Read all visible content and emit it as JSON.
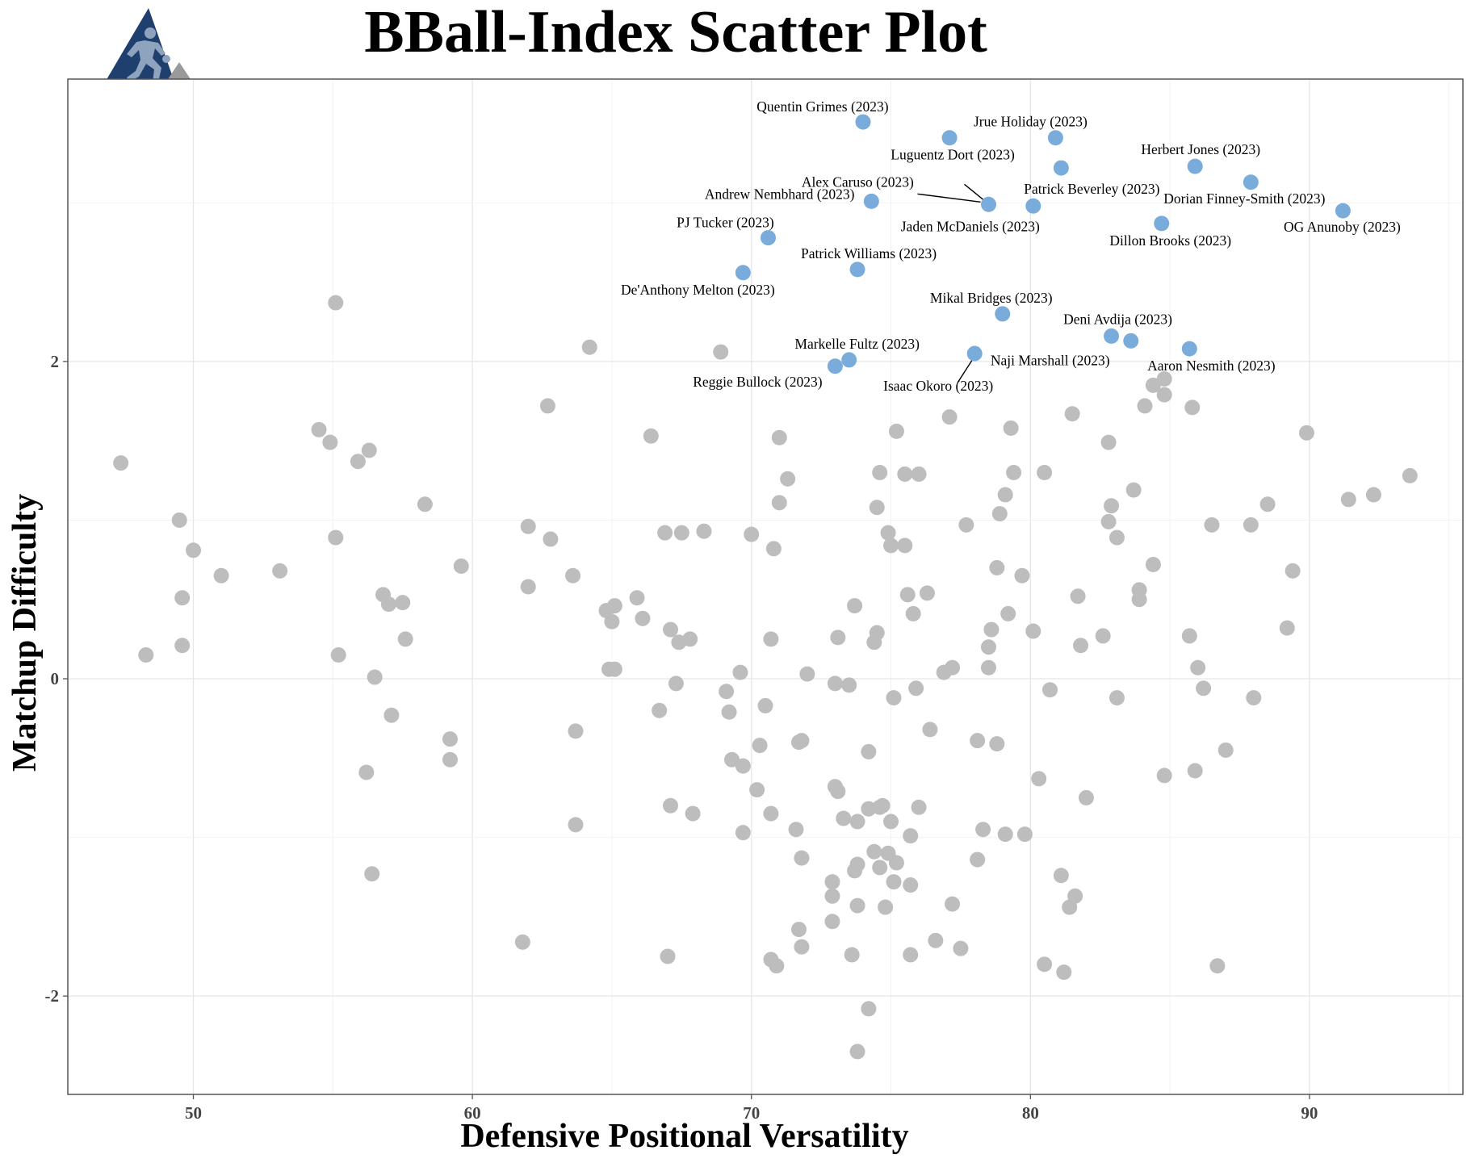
{
  "chart_data": {
    "type": "scatter",
    "title": "BBall-Index Scatter Plot",
    "xlabel": "Defensive Positional Versatility",
    "ylabel": "Matchup Difficulty",
    "xlim": [
      45.5,
      95.5
    ],
    "ylim": [
      -2.62,
      3.78
    ],
    "x_ticks": [
      50,
      60,
      70,
      80,
      90
    ],
    "y_ticks": [
      -2,
      0,
      2
    ],
    "grid": true,
    "legend": "none",
    "colors": {
      "highlight": "#7aacdb",
      "background": "#bdbdbd",
      "panel_border": "#555555"
    },
    "logo_icon": "basketball-player-logo-icon",
    "highlighted": [
      {
        "label": "Quentin Grimes (2023)",
        "x": 74.0,
        "y": 3.51
      },
      {
        "label": "Jrue Holiday (2023)",
        "x": 80.9,
        "y": 3.41
      },
      {
        "label": "Luguentz Dort (2023)",
        "x": 77.1,
        "y": 3.41
      },
      {
        "label": "Herbert Jones (2023)",
        "x": 85.9,
        "y": 3.23
      },
      {
        "label": "Patrick Beverley (2023)",
        "x": 81.1,
        "y": 3.22
      },
      {
        "label": "Dorian Finney-Smith (2023)",
        "x": 87.9,
        "y": 3.13
      },
      {
        "label": "Alex Caruso (2023)",
        "x": 74.3,
        "y": 3.01
      },
      {
        "label": "Andrew Nembhard (2023)",
        "x": 78.5,
        "y": 2.99
      },
      {
        "label": "Jaden McDaniels (2023)",
        "x": 80.1,
        "y": 2.98
      },
      {
        "label": "OG Anunoby (2023)",
        "x": 91.2,
        "y": 2.95
      },
      {
        "label": "Dillon Brooks (2023)",
        "x": 84.7,
        "y": 2.87
      },
      {
        "label": "PJ Tucker (2023)",
        "x": 70.6,
        "y": 2.78
      },
      {
        "label": "Patrick Williams (2023)",
        "x": 73.8,
        "y": 2.58
      },
      {
        "label": "De'Anthony Melton (2023)",
        "x": 69.7,
        "y": 2.56
      },
      {
        "label": "Mikal Bridges (2023)",
        "x": 79.0,
        "y": 2.3
      },
      {
        "label": "Deni Avdija (2023)",
        "x": 82.9,
        "y": 2.16
      },
      {
        "label": "Naji Marshall (2023)",
        "x": 83.6,
        "y": 2.13
      },
      {
        "label": "Aaron Nesmith (2023)",
        "x": 85.7,
        "y": 2.08
      },
      {
        "label": "Isaac Okoro (2023)",
        "x": 78.0,
        "y": 2.05
      },
      {
        "label": "Markelle Fultz (2023)",
        "x": 73.5,
        "y": 2.01
      },
      {
        "label": "Reggie Bullock (2023)",
        "x": 73.0,
        "y": 1.97
      }
    ],
    "others": [
      [
        47.4,
        1.36
      ],
      [
        48.3,
        0.15
      ],
      [
        49.5,
        1.0
      ],
      [
        49.6,
        0.51
      ],
      [
        49.6,
        0.21
      ],
      [
        50.0,
        0.81
      ],
      [
        51.0,
        0.65
      ],
      [
        53.1,
        0.68
      ],
      [
        54.5,
        1.57
      ],
      [
        54.9,
        1.49
      ],
      [
        55.1,
        2.37
      ],
      [
        55.1,
        0.89
      ],
      [
        55.2,
        0.15
      ],
      [
        55.9,
        1.37
      ],
      [
        56.3,
        1.44
      ],
      [
        56.2,
        -0.59
      ],
      [
        56.5,
        0.01
      ],
      [
        56.4,
        -1.23
      ],
      [
        56.8,
        0.53
      ],
      [
        57.0,
        0.47
      ],
      [
        57.1,
        -0.23
      ],
      [
        57.5,
        0.48
      ],
      [
        57.6,
        0.25
      ],
      [
        58.3,
        1.1
      ],
      [
        59.2,
        -0.38
      ],
      [
        59.2,
        -0.51
      ],
      [
        59.6,
        0.71
      ],
      [
        61.8,
        -1.66
      ],
      [
        62.0,
        0.96
      ],
      [
        62.0,
        0.58
      ],
      [
        62.7,
        1.72
      ],
      [
        62.8,
        0.88
      ],
      [
        63.6,
        0.65
      ],
      [
        63.7,
        -0.33
      ],
      [
        63.7,
        -0.92
      ],
      [
        64.2,
        2.09
      ],
      [
        64.8,
        0.43
      ],
      [
        64.9,
        0.06
      ],
      [
        65.0,
        0.36
      ],
      [
        65.1,
        0.46
      ],
      [
        65.1,
        0.06
      ],
      [
        65.9,
        0.51
      ],
      [
        66.1,
        0.38
      ],
      [
        66.4,
        1.53
      ],
      [
        66.7,
        -0.2
      ],
      [
        66.9,
        0.92
      ],
      [
        67.0,
        -1.75
      ],
      [
        67.1,
        0.31
      ],
      [
        67.1,
        -0.8
      ],
      [
        67.3,
        -0.03
      ],
      [
        67.4,
        0.23
      ],
      [
        67.5,
        0.92
      ],
      [
        67.8,
        0.25
      ],
      [
        67.9,
        -0.85
      ],
      [
        68.3,
        0.93
      ],
      [
        68.9,
        2.06
      ],
      [
        69.1,
        -0.08
      ],
      [
        69.2,
        -0.21
      ],
      [
        69.3,
        -0.51
      ],
      [
        69.6,
        0.04
      ],
      [
        69.7,
        -0.55
      ],
      [
        69.7,
        -0.97
      ],
      [
        70.0,
        0.91
      ],
      [
        70.2,
        -0.7
      ],
      [
        70.3,
        -0.42
      ],
      [
        70.5,
        -0.17
      ],
      [
        70.7,
        0.25
      ],
      [
        70.7,
        -0.85
      ],
      [
        70.7,
        -1.77
      ],
      [
        70.8,
        0.82
      ],
      [
        70.9,
        -1.81
      ],
      [
        71.0,
        1.52
      ],
      [
        71.0,
        1.11
      ],
      [
        71.3,
        1.26
      ],
      [
        71.6,
        -0.95
      ],
      [
        71.7,
        -0.4
      ],
      [
        71.7,
        -1.58
      ],
      [
        71.8,
        -1.69
      ],
      [
        71.8,
        -0.39
      ],
      [
        71.8,
        -1.13
      ],
      [
        72.0,
        0.03
      ],
      [
        72.9,
        -1.28
      ],
      [
        72.9,
        -1.37
      ],
      [
        72.9,
        -1.53
      ],
      [
        73.0,
        -0.03
      ],
      [
        73.0,
        -0.68
      ],
      [
        73.1,
        -0.71
      ],
      [
        73.1,
        0.26
      ],
      [
        73.3,
        -0.88
      ],
      [
        73.5,
        -0.04
      ],
      [
        73.6,
        -1.74
      ],
      [
        73.7,
        0.46
      ],
      [
        73.7,
        -1.21
      ],
      [
        73.8,
        -1.17
      ],
      [
        73.8,
        -2.35
      ],
      [
        73.8,
        -0.9
      ],
      [
        73.8,
        -1.43
      ],
      [
        74.2,
        -2.08
      ],
      [
        74.2,
        -0.46
      ],
      [
        74.2,
        -0.82
      ],
      [
        74.4,
        -1.09
      ],
      [
        74.4,
        0.23
      ],
      [
        74.5,
        0.29
      ],
      [
        74.5,
        1.08
      ],
      [
        74.6,
        1.3
      ],
      [
        74.6,
        -0.81
      ],
      [
        74.6,
        -1.19
      ],
      [
        74.7,
        -0.8
      ],
      [
        74.8,
        -1.44
      ],
      [
        74.9,
        -1.1
      ],
      [
        74.9,
        0.92
      ],
      [
        75.0,
        -0.9
      ],
      [
        75.0,
        0.84
      ],
      [
        75.1,
        -0.12
      ],
      [
        75.1,
        -1.28
      ],
      [
        75.2,
        -1.16
      ],
      [
        75.2,
        1.56
      ],
      [
        75.5,
        1.29
      ],
      [
        75.5,
        0.84
      ],
      [
        75.6,
        0.53
      ],
      [
        75.7,
        -1.74
      ],
      [
        75.7,
        -0.99
      ],
      [
        75.7,
        -1.3
      ],
      [
        75.8,
        0.41
      ],
      [
        75.9,
        -0.06
      ],
      [
        76.0,
        1.29
      ],
      [
        76.0,
        -0.81
      ],
      [
        76.3,
        0.54
      ],
      [
        76.4,
        -0.32
      ],
      [
        76.6,
        -1.65
      ],
      [
        76.9,
        0.04
      ],
      [
        77.1,
        1.65
      ],
      [
        77.2,
        0.07
      ],
      [
        77.2,
        -1.42
      ],
      [
        77.5,
        -1.7
      ],
      [
        77.7,
        0.97
      ],
      [
        78.1,
        -0.39
      ],
      [
        78.1,
        -1.14
      ],
      [
        78.3,
        -0.95
      ],
      [
        78.5,
        0.2
      ],
      [
        78.5,
        0.07
      ],
      [
        78.6,
        0.31
      ],
      [
        78.8,
        0.7
      ],
      [
        78.8,
        -0.41
      ],
      [
        78.9,
        1.04
      ],
      [
        79.1,
        1.16
      ],
      [
        79.1,
        -0.98
      ],
      [
        79.2,
        0.41
      ],
      [
        79.3,
        1.58
      ],
      [
        79.4,
        1.3
      ],
      [
        79.7,
        0.65
      ],
      [
        79.8,
        -0.98
      ],
      [
        80.1,
        0.3
      ],
      [
        80.3,
        -0.63
      ],
      [
        80.5,
        1.3
      ],
      [
        80.5,
        -1.8
      ],
      [
        80.7,
        -0.07
      ],
      [
        81.1,
        -1.24
      ],
      [
        81.2,
        -1.85
      ],
      [
        81.4,
        -1.44
      ],
      [
        81.5,
        1.67
      ],
      [
        81.6,
        -1.37
      ],
      [
        81.7,
        0.52
      ],
      [
        81.8,
        0.21
      ],
      [
        82.0,
        -0.75
      ],
      [
        82.6,
        0.27
      ],
      [
        82.8,
        1.49
      ],
      [
        82.8,
        0.99
      ],
      [
        82.9,
        1.09
      ],
      [
        83.1,
        0.89
      ],
      [
        83.1,
        -0.12
      ],
      [
        83.7,
        1.19
      ],
      [
        83.9,
        0.56
      ],
      [
        83.9,
        0.5
      ],
      [
        84.1,
        1.72
      ],
      [
        84.4,
        0.72
      ],
      [
        84.4,
        1.85
      ],
      [
        84.8,
        1.89
      ],
      [
        84.8,
        1.79
      ],
      [
        84.8,
        -0.61
      ],
      [
        85.7,
        0.27
      ],
      [
        85.8,
        1.71
      ],
      [
        85.9,
        -0.58
      ],
      [
        86.0,
        0.07
      ],
      [
        86.2,
        -0.06
      ],
      [
        86.5,
        0.97
      ],
      [
        86.7,
        -1.81
      ],
      [
        87.0,
        -0.45
      ],
      [
        87.9,
        0.97
      ],
      [
        88.0,
        -0.12
      ],
      [
        88.5,
        1.1
      ],
      [
        89.2,
        0.32
      ],
      [
        89.4,
        0.68
      ],
      [
        89.9,
        1.55
      ],
      [
        91.4,
        1.13
      ],
      [
        92.3,
        1.16
      ],
      [
        93.6,
        1.28
      ]
    ]
  }
}
